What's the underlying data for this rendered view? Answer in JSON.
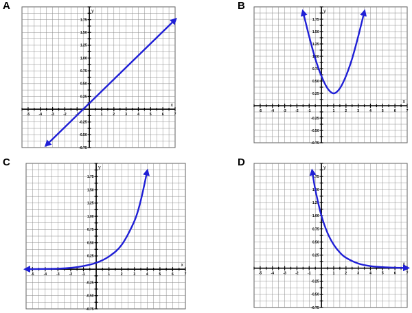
{
  "chart_data": [
    {
      "label": "A",
      "type": "line",
      "curve": "linear",
      "xlabel": "x",
      "ylabel": "y",
      "xlim": [
        -5.5,
        7
      ],
      "ylim": [
        -0.75,
        2
      ],
      "grid": true,
      "x_ticks": [
        "-5",
        "-4",
        "-3",
        "-2",
        "-1",
        "1",
        "2",
        "3",
        "4",
        "5",
        "6",
        "7"
      ],
      "y_ticks": [
        "1.75",
        "1.50",
        "1.25",
        "1.00",
        "0.75",
        "0.50",
        "0.25",
        "-0.25",
        "-0.50",
        "-0.75"
      ],
      "series": [
        {
          "color": "#1f1fd6",
          "arrows": "both",
          "x": [
            -3.5,
            7
          ],
          "y": [
            -0.7,
            1.75
          ]
        }
      ]
    },
    {
      "label": "B",
      "type": "line",
      "curve": "parabola",
      "xlabel": "x",
      "ylabel": "y",
      "xlim": [
        -5.5,
        7
      ],
      "ylim": [
        -0.75,
        2
      ],
      "grid": true,
      "x_ticks": [
        "-5",
        "-4",
        "-3",
        "-2",
        "-1",
        "1",
        "2",
        "3",
        "4",
        "5",
        "6",
        "7"
      ],
      "y_ticks": [
        "1.75",
        "1.50",
        "1.25",
        "1.00",
        "0.75",
        "0.50",
        "0.25",
        "-0.25",
        "-0.50",
        "-0.75"
      ],
      "series": [
        {
          "color": "#1f1fd6",
          "arrows": "both",
          "x": [
            -1.5,
            -1,
            -0.5,
            0,
            0.5,
            1,
            1.5,
            2,
            2.5,
            3,
            3.5
          ],
          "y": [
            1.9,
            1.4,
            0.95,
            0.6,
            0.35,
            0.25,
            0.35,
            0.6,
            0.95,
            1.4,
            1.9
          ]
        }
      ]
    },
    {
      "label": "C",
      "type": "line",
      "curve": "exponential-growth",
      "xlabel": "x",
      "ylabel": "y",
      "xlim": [
        -5.5,
        7
      ],
      "ylim": [
        -0.75,
        2
      ],
      "grid": true,
      "x_ticks": [
        "-5",
        "-4",
        "-3",
        "-2",
        "-1",
        "1",
        "2",
        "3",
        "4",
        "5",
        "6",
        "7"
      ],
      "y_ticks": [
        "1.75",
        "1.50",
        "1.25",
        "1.00",
        "0.75",
        "0.50",
        "0.25",
        "-0.25",
        "-0.50",
        "-0.75"
      ],
      "series": [
        {
          "color": "#1f1fd6",
          "arrows": "both",
          "x": [
            -5.5,
            -4,
            -3,
            -2,
            -1,
            0,
            1,
            2,
            3,
            3.5,
            4
          ],
          "y": [
            0,
            0.005,
            0.01,
            0.025,
            0.06,
            0.12,
            0.24,
            0.46,
            0.91,
            1.3,
            1.85
          ]
        }
      ]
    },
    {
      "label": "D",
      "type": "line",
      "curve": "exponential-decay",
      "xlabel": "x",
      "ylabel": "y",
      "xlim": [
        -5.5,
        7
      ],
      "ylim": [
        -0.75,
        2
      ],
      "grid": true,
      "x_ticks": [
        "-5",
        "-4",
        "-3",
        "-2",
        "-1",
        "1",
        "2",
        "3",
        "4",
        "5",
        "6",
        "7"
      ],
      "y_ticks": [
        "1.75",
        "1.50",
        "1.25",
        "1.00",
        "0.75",
        "0.50",
        "0.25",
        "-0.25",
        "-0.50",
        "-0.75"
      ],
      "series": [
        {
          "color": "#1f1fd6",
          "arrows": "both",
          "x": [
            -0.75,
            -0.5,
            0,
            0.5,
            1,
            1.5,
            2,
            3,
            4,
            5,
            6,
            7
          ],
          "y": [
            1.85,
            1.5,
            1.0,
            0.67,
            0.45,
            0.3,
            0.2,
            0.09,
            0.04,
            0.02,
            0.01,
            0.005
          ]
        }
      ]
    }
  ]
}
